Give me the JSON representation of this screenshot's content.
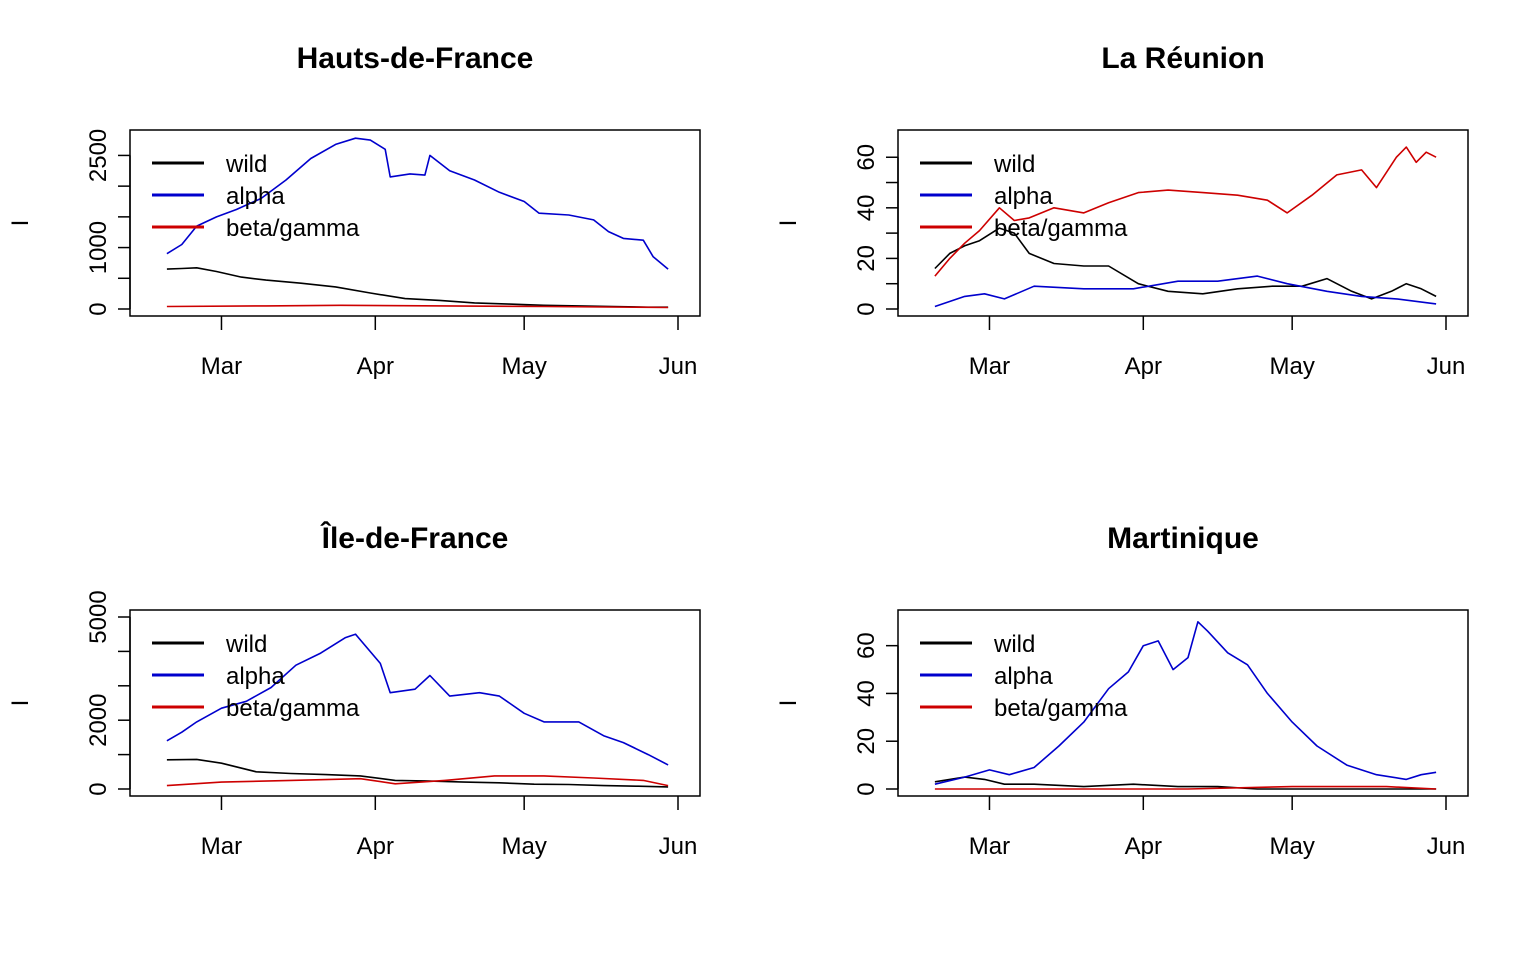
{
  "chart_data": [
    {
      "type": "line",
      "title": "Hauts-de-France",
      "xlabel": "",
      "ylabel": "I",
      "x_ticks": [
        "Mar",
        "Apr",
        "May",
        "Jun"
      ],
      "x_range": [
        "2021-02-15",
        "2021-06-01"
      ],
      "ylim": [
        0,
        2800
      ],
      "y_ticks": [
        0,
        500,
        1000,
        1500,
        2000,
        2500
      ],
      "y_tick_labels": [
        "0",
        "",
        "1000",
        "",
        "",
        "2500"
      ],
      "legend": {
        "position": "top-left"
      },
      "series": [
        {
          "name": "wild",
          "color": "#000000",
          "x": [
            "2021-02-18",
            "2021-02-21",
            "2021-02-24",
            "2021-02-28",
            "2021-03-05",
            "2021-03-10",
            "2021-03-17",
            "2021-03-24",
            "2021-03-31",
            "2021-04-07",
            "2021-04-14",
            "2021-04-21",
            "2021-04-28",
            "2021-05-05",
            "2021-05-12",
            "2021-05-19",
            "2021-05-26",
            "2021-05-30"
          ],
          "values": [
            650,
            660,
            670,
            610,
            520,
            470,
            420,
            360,
            260,
            170,
            140,
            100,
            80,
            60,
            50,
            40,
            30,
            30
          ]
        },
        {
          "name": "alpha",
          "color": "#0000CD",
          "x": [
            "2021-02-18",
            "2021-02-21",
            "2021-02-24",
            "2021-02-28",
            "2021-03-04",
            "2021-03-09",
            "2021-03-14",
            "2021-03-19",
            "2021-03-24",
            "2021-03-28",
            "2021-03-31",
            "2021-04-03",
            "2021-04-04",
            "2021-04-08",
            "2021-04-11",
            "2021-04-12",
            "2021-04-16",
            "2021-04-21",
            "2021-04-26",
            "2021-05-01",
            "2021-05-04",
            "2021-05-10",
            "2021-05-15",
            "2021-05-18",
            "2021-05-21",
            "2021-05-25",
            "2021-05-27",
            "2021-05-30"
          ],
          "values": [
            900,
            1050,
            1350,
            1500,
            1620,
            1800,
            2100,
            2450,
            2680,
            2780,
            2750,
            2600,
            2150,
            2200,
            2180,
            2500,
            2250,
            2100,
            1900,
            1750,
            1560,
            1530,
            1450,
            1260,
            1150,
            1120,
            850,
            650
          ]
        },
        {
          "name": "beta/gamma",
          "color": "#CD0000",
          "x": [
            "2021-02-18",
            "2021-03-10",
            "2021-03-25",
            "2021-04-15",
            "2021-05-05",
            "2021-05-30"
          ],
          "values": [
            40,
            50,
            60,
            50,
            40,
            25
          ]
        }
      ]
    },
    {
      "type": "line",
      "title": "La Réunion",
      "xlabel": "",
      "ylabel": "I",
      "x_ticks": [
        "Mar",
        "Apr",
        "May",
        "Jun"
      ],
      "x_range": [
        "2021-02-15",
        "2021-06-01"
      ],
      "ylim": [
        0,
        68
      ],
      "y_ticks": [
        0,
        10,
        20,
        30,
        40,
        50,
        60
      ],
      "y_tick_labels": [
        "0",
        "",
        "20",
        "",
        "40",
        "",
        "60"
      ],
      "legend": {
        "position": "top-left"
      },
      "series": [
        {
          "name": "wild",
          "color": "#000000",
          "x": [
            "2021-02-18",
            "2021-02-21",
            "2021-02-24",
            "2021-02-27",
            "2021-03-03",
            "2021-03-06",
            "2021-03-09",
            "2021-03-14",
            "2021-03-20",
            "2021-03-25",
            "2021-03-31",
            "2021-04-06",
            "2021-04-13",
            "2021-04-20",
            "2021-04-27",
            "2021-05-03",
            "2021-05-08",
            "2021-05-13",
            "2021-05-17",
            "2021-05-21",
            "2021-05-24",
            "2021-05-27",
            "2021-05-30"
          ],
          "values": [
            16,
            22,
            25,
            27,
            32,
            30,
            22,
            18,
            17,
            17,
            10,
            7,
            6,
            8,
            9,
            9,
            12,
            7,
            4,
            7,
            10,
            8,
            5
          ]
        },
        {
          "name": "alpha",
          "color": "#0000CD",
          "x": [
            "2021-02-18",
            "2021-02-24",
            "2021-02-28",
            "2021-03-04",
            "2021-03-10",
            "2021-03-20",
            "2021-03-30",
            "2021-04-08",
            "2021-04-16",
            "2021-04-24",
            "2021-04-30",
            "2021-05-08",
            "2021-05-15",
            "2021-05-22",
            "2021-05-30"
          ],
          "values": [
            1,
            5,
            6,
            4,
            9,
            8,
            8,
            11,
            11,
            13,
            10,
            7,
            5,
            4,
            2
          ]
        },
        {
          "name": "beta/gamma",
          "color": "#CD0000",
          "x": [
            "2021-02-18",
            "2021-02-21",
            "2021-02-24",
            "2021-02-27",
            "2021-03-03",
            "2021-03-06",
            "2021-03-09",
            "2021-03-14",
            "2021-03-20",
            "2021-03-25",
            "2021-03-31",
            "2021-04-06",
            "2021-04-13",
            "2021-04-20",
            "2021-04-26",
            "2021-04-30",
            "2021-05-05",
            "2021-05-10",
            "2021-05-15",
            "2021-05-18",
            "2021-05-22",
            "2021-05-24",
            "2021-05-26",
            "2021-05-28",
            "2021-05-30"
          ],
          "values": [
            13,
            20,
            26,
            31,
            40,
            35,
            36,
            40,
            38,
            42,
            46,
            47,
            46,
            45,
            43,
            38,
            45,
            53,
            55,
            48,
            60,
            64,
            58,
            62,
            60
          ]
        }
      ]
    },
    {
      "type": "line",
      "title": "Île-de-France",
      "xlabel": "",
      "ylabel": "I",
      "x_ticks": [
        "Mar",
        "Apr",
        "May",
        "Jun"
      ],
      "x_range": [
        "2021-02-15",
        "2021-06-01"
      ],
      "ylim": [
        0,
        5000
      ],
      "y_ticks": [
        0,
        1000,
        2000,
        3000,
        4000,
        5000
      ],
      "y_tick_labels": [
        "0",
        "",
        "2000",
        "",
        "",
        "5000"
      ],
      "legend": {
        "position": "top-left"
      },
      "series": [
        {
          "name": "wild",
          "color": "#000000",
          "x": [
            "2021-02-18",
            "2021-02-24",
            "2021-03-01",
            "2021-03-08",
            "2021-03-15",
            "2021-03-22",
            "2021-03-29",
            "2021-04-05",
            "2021-04-12",
            "2021-04-19",
            "2021-04-26",
            "2021-05-03",
            "2021-05-10",
            "2021-05-17",
            "2021-05-24",
            "2021-05-30"
          ],
          "values": [
            850,
            860,
            750,
            500,
            450,
            420,
            380,
            250,
            230,
            200,
            180,
            140,
            130,
            100,
            80,
            60
          ]
        },
        {
          "name": "alpha",
          "color": "#0000CD",
          "x": [
            "2021-02-18",
            "2021-02-21",
            "2021-02-24",
            "2021-03-01",
            "2021-03-06",
            "2021-03-11",
            "2021-03-16",
            "2021-03-21",
            "2021-03-26",
            "2021-03-28",
            "2021-04-02",
            "2021-04-04",
            "2021-04-09",
            "2021-04-12",
            "2021-04-16",
            "2021-04-22",
            "2021-04-26",
            "2021-05-01",
            "2021-05-05",
            "2021-05-12",
            "2021-05-17",
            "2021-05-21",
            "2021-05-26",
            "2021-05-30"
          ],
          "values": [
            1400,
            1650,
            1950,
            2350,
            2550,
            2950,
            3600,
            3950,
            4400,
            4500,
            3650,
            2800,
            2900,
            3300,
            2700,
            2800,
            2700,
            2200,
            1950,
            1950,
            1550,
            1350,
            1000,
            700
          ]
        },
        {
          "name": "beta/gamma",
          "color": "#CD0000",
          "x": [
            "2021-02-18",
            "2021-03-01",
            "2021-03-15",
            "2021-03-29",
            "2021-04-05",
            "2021-04-15",
            "2021-04-25",
            "2021-05-05",
            "2021-05-15",
            "2021-05-25",
            "2021-05-30"
          ],
          "values": [
            100,
            200,
            250,
            300,
            150,
            250,
            380,
            380,
            320,
            250,
            100
          ]
        }
      ]
    },
    {
      "type": "line",
      "title": "Martinique",
      "xlabel": "",
      "ylabel": "I",
      "x_ticks": [
        "Mar",
        "Apr",
        "May",
        "Jun"
      ],
      "x_range": [
        "2021-02-15",
        "2021-06-01"
      ],
      "ylim": [
        0,
        72
      ],
      "y_ticks": [
        0,
        20,
        40,
        60
      ],
      "y_tick_labels": [
        "0",
        "20",
        "40",
        "60"
      ],
      "legend": {
        "position": "top-left"
      },
      "series": [
        {
          "name": "wild",
          "color": "#000000",
          "x": [
            "2021-02-18",
            "2021-02-24",
            "2021-02-28",
            "2021-03-04",
            "2021-03-10",
            "2021-03-20",
            "2021-03-30",
            "2021-04-08",
            "2021-04-16",
            "2021-04-24",
            "2021-05-05",
            "2021-05-15",
            "2021-05-24",
            "2021-05-30"
          ],
          "values": [
            3,
            5,
            4,
            2,
            2,
            1,
            2,
            1,
            1,
            0,
            0,
            0,
            0,
            0
          ]
        },
        {
          "name": "alpha",
          "color": "#0000CD",
          "x": [
            "2021-02-18",
            "2021-02-24",
            "2021-03-01",
            "2021-03-05",
            "2021-03-10",
            "2021-03-15",
            "2021-03-20",
            "2021-03-25",
            "2021-03-29",
            "2021-04-01",
            "2021-04-04",
            "2021-04-07",
            "2021-04-10",
            "2021-04-12",
            "2021-04-14",
            "2021-04-18",
            "2021-04-22",
            "2021-04-26",
            "2021-05-01",
            "2021-05-06",
            "2021-05-12",
            "2021-05-18",
            "2021-05-24",
            "2021-05-27",
            "2021-05-30"
          ],
          "values": [
            2,
            5,
            8,
            6,
            9,
            18,
            28,
            42,
            49,
            60,
            62,
            50,
            55,
            70,
            66,
            57,
            52,
            40,
            28,
            18,
            10,
            6,
            4,
            6,
            7
          ]
        },
        {
          "name": "beta/gamma",
          "color": "#CD0000",
          "x": [
            "2021-02-18",
            "2021-03-15",
            "2021-04-10",
            "2021-05-01",
            "2021-05-20",
            "2021-05-30"
          ],
          "values": [
            0,
            0,
            0,
            1,
            1,
            0
          ]
        }
      ]
    }
  ]
}
